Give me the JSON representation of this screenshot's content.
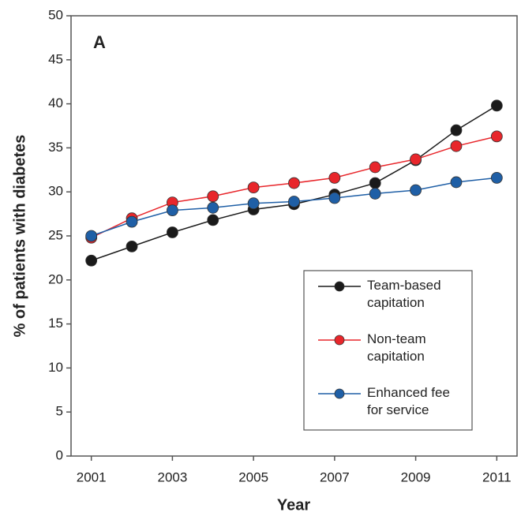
{
  "chart_data": {
    "type": "line",
    "panel_label": "A",
    "x_label": "Year",
    "y_label": "% of patients with diabetes",
    "x": [
      2001,
      2002,
      2003,
      2004,
      2005,
      2006,
      2007,
      2008,
      2009,
      2010,
      2011
    ],
    "series": [
      {
        "name": "Team-based\ncapitation",
        "color": "#1a1a1a",
        "values": [
          22.2,
          23.8,
          25.4,
          26.8,
          28.0,
          28.6,
          29.7,
          31.0,
          33.6,
          37.0,
          39.8
        ]
      },
      {
        "name": "Non-team\ncapitation",
        "color": "#e8262b",
        "values": [
          24.8,
          27.0,
          28.8,
          29.5,
          30.5,
          31.0,
          31.6,
          32.8,
          33.7,
          35.2,
          36.3
        ]
      },
      {
        "name": "Enhanced fee\nfor service",
        "color": "#1f5fa6",
        "values": [
          25.0,
          26.6,
          27.9,
          28.2,
          28.7,
          28.9,
          29.3,
          29.8,
          30.2,
          31.1,
          31.6
        ]
      }
    ],
    "xlim": [
      2000.5,
      2011.5
    ],
    "xticks": [
      2001,
      2003,
      2005,
      2007,
      2009,
      2011
    ],
    "ylim": [
      0,
      50
    ],
    "yticks": [
      0,
      5,
      10,
      15,
      20,
      25,
      30,
      35,
      40,
      45,
      50
    ],
    "grid": false,
    "legend": "lower right"
  }
}
